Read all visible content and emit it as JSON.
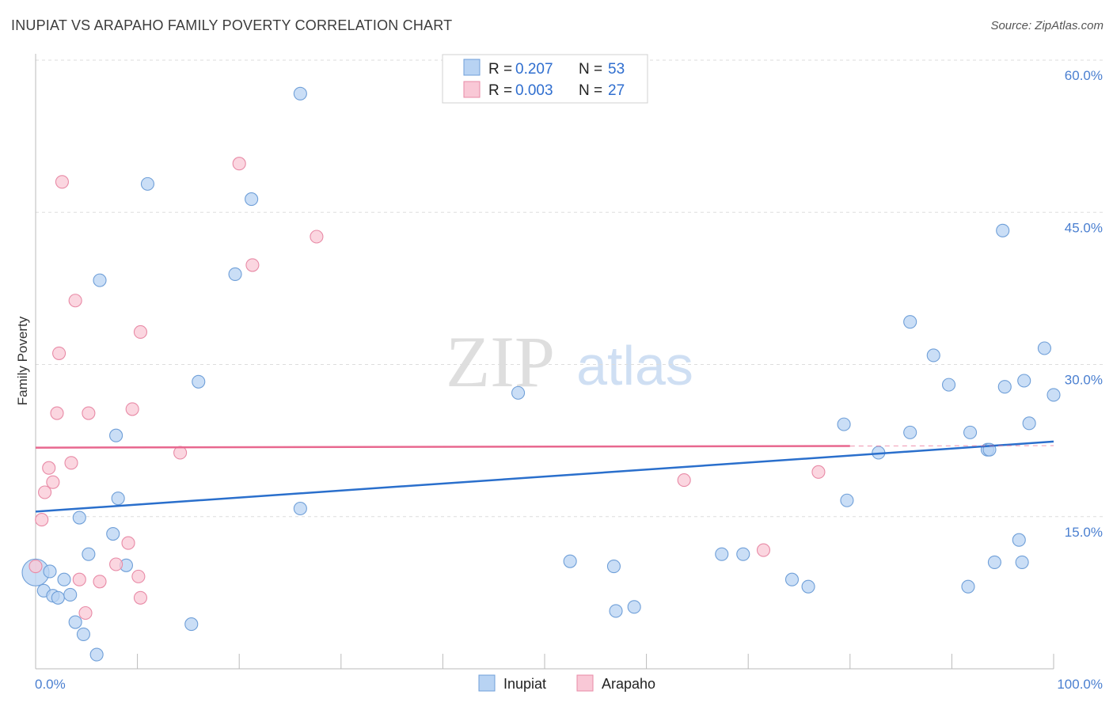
{
  "title": "INUPIAT VS ARAPAHO FAMILY POVERTY CORRELATION CHART",
  "source": "Source: ZipAtlas.com",
  "watermark": {
    "zip": "ZIP",
    "atlas": "atlas"
  },
  "colors": {
    "inupiat_fill": "#b8d3f3",
    "inupiat_stroke": "#6f9fd8",
    "inupiat_line": "#2a6fcc",
    "arapaho_fill": "#f9c8d6",
    "arapaho_stroke": "#e88aa6",
    "arapaho_line": "#e8688f",
    "tick_label": "#4a7fd0",
    "grid": "#dddddd"
  },
  "legend": {
    "rows": [
      {
        "r_label": "R =",
        "r_value": "0.207",
        "n_label": "N =",
        "n_value": "53"
      },
      {
        "r_label": "R =",
        "r_value": "0.003",
        "n_label": "N =",
        "n_value": "27"
      }
    ]
  },
  "chart_data": {
    "type": "scatter",
    "title": "INUPIAT VS ARAPAHO FAMILY POVERTY CORRELATION CHART",
    "xlabel": "",
    "ylabel": "Family Poverty",
    "xlim": [
      0,
      100
    ],
    "ylim": [
      0,
      60
    ],
    "x_tick_labels": [
      "0.0%",
      "100.0%"
    ],
    "y_ticks": [
      15,
      30,
      45,
      60
    ],
    "y_tick_labels": [
      "15.0%",
      "30.0%",
      "45.0%",
      "60.0%"
    ],
    "grid": true,
    "legend_position": "bottom-center",
    "series": [
      {
        "name": "Inupiat",
        "r": 0.207,
        "n": 53,
        "trend": {
          "x0": 0,
          "y0": 15.5,
          "x1": 100,
          "y1": 22.4
        },
        "points": [
          [
            0,
            9.5
          ],
          [
            0.8,
            7.7
          ],
          [
            1.4,
            9.6
          ],
          [
            1.7,
            7.2
          ],
          [
            2.2,
            7.0
          ],
          [
            2.8,
            8.8
          ],
          [
            3.4,
            7.3
          ],
          [
            3.9,
            4.6
          ],
          [
            4.3,
            14.9
          ],
          [
            4.7,
            3.4
          ],
          [
            5.2,
            11.3
          ],
          [
            6.0,
            1.4
          ],
          [
            6.3,
            38.3
          ],
          [
            7.6,
            13.3
          ],
          [
            7.9,
            23.0
          ],
          [
            8.1,
            16.8
          ],
          [
            8.9,
            10.2
          ],
          [
            11.0,
            47.8
          ],
          [
            15.3,
            4.4
          ],
          [
            16.0,
            28.3
          ],
          [
            19.6,
            38.9
          ],
          [
            21.2,
            46.3
          ],
          [
            26.0,
            15.8
          ],
          [
            26.0,
            56.7
          ],
          [
            47.4,
            27.2
          ],
          [
            52.5,
            10.6
          ],
          [
            56.8,
            10.1
          ],
          [
            57.0,
            5.7
          ],
          [
            58.8,
            6.1
          ],
          [
            67.4,
            11.3
          ],
          [
            69.5,
            11.3
          ],
          [
            74.3,
            8.8
          ],
          [
            75.9,
            8.1
          ],
          [
            79.4,
            24.1
          ],
          [
            79.7,
            16.6
          ],
          [
            82.8,
            21.3
          ],
          [
            85.9,
            23.3
          ],
          [
            85.9,
            34.2
          ],
          [
            88.2,
            30.9
          ],
          [
            89.7,
            28.0
          ],
          [
            91.6,
            8.1
          ],
          [
            91.8,
            23.3
          ],
          [
            93.5,
            21.6
          ],
          [
            93.7,
            21.6
          ],
          [
            94.2,
            10.5
          ],
          [
            95.0,
            43.2
          ],
          [
            95.2,
            27.8
          ],
          [
            96.6,
            12.7
          ],
          [
            96.9,
            10.5
          ],
          [
            97.1,
            28.4
          ],
          [
            97.6,
            24.2
          ],
          [
            99.1,
            31.6
          ],
          [
            100,
            27.0
          ]
        ]
      },
      {
        "name": "Arapaho",
        "r": 0.003,
        "n": 27,
        "trend": {
          "x0": 0,
          "y0": 21.8,
          "x1": 100,
          "y1": 22.0,
          "solid_until": 80
        },
        "points": [
          [
            0,
            10.1
          ],
          [
            0.6,
            14.7
          ],
          [
            0.9,
            17.4
          ],
          [
            1.3,
            19.8
          ],
          [
            1.7,
            18.4
          ],
          [
            2.1,
            25.2
          ],
          [
            2.3,
            31.1
          ],
          [
            2.6,
            48.0
          ],
          [
            3.5,
            20.3
          ],
          [
            3.9,
            36.3
          ],
          [
            4.3,
            8.8
          ],
          [
            4.9,
            5.5
          ],
          [
            5.2,
            25.2
          ],
          [
            6.3,
            8.6
          ],
          [
            7.9,
            10.3
          ],
          [
            9.1,
            12.4
          ],
          [
            9.5,
            25.6
          ],
          [
            10.1,
            9.1
          ],
          [
            10.3,
            7.0
          ],
          [
            10.3,
            33.2
          ],
          [
            14.2,
            21.3
          ],
          [
            20.0,
            49.8
          ],
          [
            21.3,
            39.8
          ],
          [
            27.6,
            42.6
          ],
          [
            63.7,
            18.6
          ],
          [
            71.5,
            11.7
          ],
          [
            76.9,
            19.4
          ]
        ]
      }
    ]
  },
  "bottom_legend": {
    "items": [
      {
        "label": "Inupiat"
      },
      {
        "label": "Arapaho"
      }
    ]
  }
}
